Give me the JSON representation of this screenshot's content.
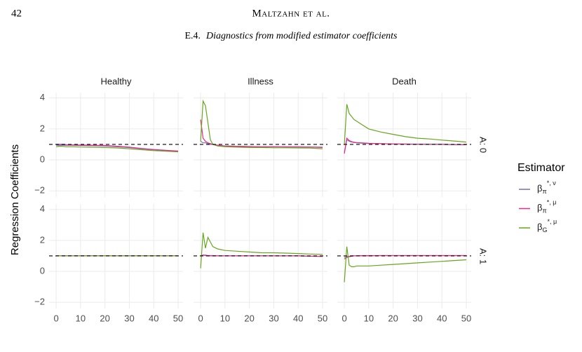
{
  "header": {
    "page_number": "42",
    "running_head": "Maltzahn et al."
  },
  "section": {
    "number": "E.4.",
    "title": "Diagnostics from modified estimator coefficients"
  },
  "chart_data": {
    "type": "line",
    "y_label": "Regression Coefficients",
    "columns": [
      "Healthy",
      "Illness",
      "Death"
    ],
    "rows": [
      "A: 0",
      "A: 1"
    ],
    "legend_title": "Estimator",
    "series": [
      {
        "name": {
          "base": "β",
          "sub": "π",
          "sup": "*, ν"
        },
        "color": "#7570b3"
      },
      {
        "name": {
          "base": "β",
          "sub": "π",
          "sup": "*, μ"
        },
        "color": "#e7298a"
      },
      {
        "name": {
          "base": "β",
          "sub": "G",
          "sup": "*, μ"
        },
        "color": "#66a61e"
      }
    ],
    "reference_line": 1,
    "xlim": [
      -2.9,
      52
    ],
    "ylim": [
      -2.4,
      4.35
    ],
    "xticks": [
      0,
      10,
      20,
      30,
      40,
      50
    ],
    "yticks": [
      {
        "value": -2,
        "label": "−2"
      },
      0,
      2,
      4
    ],
    "grid": true,
    "x": [
      0,
      1,
      2,
      3,
      4,
      5,
      7,
      10,
      15,
      20,
      25,
      30,
      35,
      40,
      45,
      50
    ],
    "panels": [
      [
        [
          [
            0.95,
            0.95,
            0.95,
            0.95,
            0.95,
            0.95,
            0.95,
            0.93,
            0.92,
            0.9,
            0.85,
            0.8,
            0.72,
            0.65,
            0.6,
            0.55
          ],
          [
            1,
            1,
            1,
            1,
            0.98,
            0.97,
            0.97,
            0.96,
            0.95,
            0.93,
            0.88,
            0.82,
            0.74,
            0.67,
            0.62,
            0.57
          ],
          [
            0.85,
            0.88,
            0.88,
            0.87,
            0.85,
            0.85,
            0.85,
            0.83,
            0.82,
            0.8,
            0.77,
            0.72,
            0.66,
            0.6,
            0.56,
            0.52
          ]
        ],
        [
          [
            1.2,
            1.1,
            1.1,
            1.05,
            1,
            1,
            0.95,
            0.9,
            0.88,
            0.86,
            0.85,
            0.85,
            0.84,
            0.84,
            0.83,
            0.82
          ],
          [
            2.6,
            1.4,
            1.2,
            1.1,
            1.05,
            1,
            0.95,
            0.9,
            0.88,
            0.86,
            0.85,
            0.85,
            0.84,
            0.84,
            0.83,
            0.8
          ],
          [
            1.2,
            3.8,
            3.5,
            2.4,
            1.3,
            1,
            0.9,
            0.85,
            0.82,
            0.8,
            0.8,
            0.78,
            0.78,
            0.77,
            0.76,
            0.72
          ]
        ],
        [
          [
            0.5,
            1.3,
            1.2,
            1.15,
            1.12,
            1.1,
            1.08,
            1.06,
            1.05,
            1.03,
            1.02,
            1.01,
            1,
            1,
            0.99,
            0.98
          ],
          [
            0.4,
            1.4,
            1.25,
            1.18,
            1.14,
            1.12,
            1.1,
            1.07,
            1.05,
            1.03,
            1.02,
            1.01,
            1,
            1,
            0.99,
            0.98
          ],
          [
            1,
            3.6,
            3,
            2.8,
            2.6,
            2.5,
            2.3,
            2,
            1.8,
            1.65,
            1.5,
            1.4,
            1.35,
            1.28,
            1.22,
            1.15
          ]
        ]
      ],
      [
        [
          [
            1,
            1,
            1,
            1,
            1,
            1,
            1,
            1,
            1,
            1,
            1,
            1,
            1,
            1,
            1,
            1
          ],
          [
            1,
            1,
            1,
            1,
            1,
            1,
            1,
            1,
            1,
            1,
            1,
            1,
            1,
            1,
            1,
            1
          ],
          [
            1,
            1,
            1,
            1,
            1,
            1,
            1,
            1,
            1,
            1,
            1,
            1,
            1,
            1,
            1,
            1
          ]
        ],
        [
          [
            1,
            1.05,
            1.02,
            1,
            1,
            1,
            1,
            1,
            1,
            1,
            1,
            1,
            1,
            1,
            0.98,
            0.97
          ],
          [
            1,
            1.05,
            1.05,
            1.02,
            1.02,
            1.02,
            1,
            1,
            1,
            1,
            1,
            1,
            1,
            1,
            0.98,
            0.97
          ],
          [
            0.2,
            2.5,
            1.5,
            2.2,
            1.9,
            1.6,
            1.45,
            1.35,
            1.3,
            1.25,
            1.2,
            1.2,
            1.18,
            1.15,
            1.12,
            1.1
          ]
        ],
        [
          [
            0.9,
            0.95,
            0.97,
            1,
            1,
            1,
            1,
            1,
            1.02,
            1.02,
            1.02,
            1.02,
            1.02,
            1.02,
            1.02,
            1.02
          ],
          [
            0.8,
            0.9,
            0.95,
            0.98,
            1,
            1,
            1.02,
            1.02,
            1.02,
            1.02,
            1.02,
            1.02,
            1.02,
            1.02,
            1.02,
            1.02
          ],
          [
            -0.7,
            1.6,
            0.4,
            0.3,
            0.3,
            0.35,
            0.35,
            0.35,
            0.4,
            0.45,
            0.5,
            0.55,
            0.6,
            0.65,
            0.7,
            0.75
          ]
        ]
      ]
    ]
  }
}
